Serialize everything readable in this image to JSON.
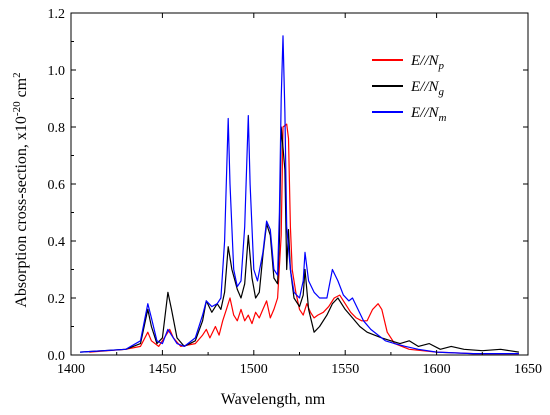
{
  "chart_data": {
    "type": "line",
    "xlabel": "Wavelength, nm",
    "ylabel_prefix": "Absorption cross-section, x10",
    "ylabel_exp": "-20",
    "ylabel_unit": " cm",
    "ylabel_unit_exp": "2",
    "xlim": [
      1400,
      1650
    ],
    "ylim": [
      0.0,
      1.2
    ],
    "xticks": [
      "1400",
      "1450",
      "1500",
      "1550",
      "1600",
      "1650"
    ],
    "yticks": [
      "0.0",
      "0.2",
      "0.4",
      "0.6",
      "0.8",
      "1.0",
      "1.2"
    ],
    "legend_position": "top-right",
    "series": [
      {
        "name_main": "E//N",
        "name_sub": "p",
        "color": "#ff0000",
        "points": [
          [
            1410,
            0.01
          ],
          [
            1430,
            0.02
          ],
          [
            1438,
            0.03
          ],
          [
            1442,
            0.08
          ],
          [
            1444,
            0.05
          ],
          [
            1448,
            0.03
          ],
          [
            1452,
            0.07
          ],
          [
            1454,
            0.09
          ],
          [
            1456,
            0.06
          ],
          [
            1460,
            0.03
          ],
          [
            1468,
            0.04
          ],
          [
            1472,
            0.07
          ],
          [
            1474,
            0.09
          ],
          [
            1476,
            0.06
          ],
          [
            1479,
            0.1
          ],
          [
            1481,
            0.07
          ],
          [
            1483,
            0.12
          ],
          [
            1485,
            0.16
          ],
          [
            1487,
            0.2
          ],
          [
            1489,
            0.14
          ],
          [
            1491,
            0.12
          ],
          [
            1493,
            0.16
          ],
          [
            1495,
            0.12
          ],
          [
            1497,
            0.14
          ],
          [
            1499,
            0.11
          ],
          [
            1501,
            0.15
          ],
          [
            1503,
            0.13
          ],
          [
            1505,
            0.16
          ],
          [
            1507,
            0.19
          ],
          [
            1509,
            0.13
          ],
          [
            1511,
            0.16
          ],
          [
            1513,
            0.2
          ],
          [
            1515,
            0.42
          ],
          [
            1516,
            0.8
          ],
          [
            1518,
            0.81
          ],
          [
            1519,
            0.76
          ],
          [
            1520,
            0.45
          ],
          [
            1521,
            0.3
          ],
          [
            1523,
            0.22
          ],
          [
            1525,
            0.16
          ],
          [
            1527,
            0.14
          ],
          [
            1529,
            0.18
          ],
          [
            1531,
            0.15
          ],
          [
            1533,
            0.13
          ],
          [
            1535,
            0.14
          ],
          [
            1538,
            0.15
          ],
          [
            1541,
            0.17
          ],
          [
            1544,
            0.2
          ],
          [
            1547,
            0.21
          ],
          [
            1550,
            0.18
          ],
          [
            1553,
            0.15
          ],
          [
            1556,
            0.13
          ],
          [
            1559,
            0.12
          ],
          [
            1562,
            0.12
          ],
          [
            1565,
            0.16
          ],
          [
            1568,
            0.18
          ],
          [
            1570,
            0.16
          ],
          [
            1573,
            0.08
          ],
          [
            1577,
            0.04
          ],
          [
            1585,
            0.02
          ],
          [
            1600,
            0.01
          ],
          [
            1620,
            0.005
          ],
          [
            1645,
            0.005
          ]
        ]
      },
      {
        "name_main": "E//N",
        "name_sub": "g",
        "color": "#000000",
        "points": [
          [
            1405,
            0.01
          ],
          [
            1430,
            0.02
          ],
          [
            1438,
            0.04
          ],
          [
            1442,
            0.16
          ],
          [
            1444,
            0.1
          ],
          [
            1447,
            0.04
          ],
          [
            1450,
            0.06
          ],
          [
            1453,
            0.22
          ],
          [
            1455,
            0.16
          ],
          [
            1458,
            0.06
          ],
          [
            1462,
            0.03
          ],
          [
            1468,
            0.05
          ],
          [
            1472,
            0.12
          ],
          [
            1474,
            0.19
          ],
          [
            1477,
            0.15
          ],
          [
            1480,
            0.18
          ],
          [
            1482,
            0.16
          ],
          [
            1484,
            0.22
          ],
          [
            1486,
            0.38
          ],
          [
            1488,
            0.3
          ],
          [
            1491,
            0.23
          ],
          [
            1493,
            0.2
          ],
          [
            1495,
            0.25
          ],
          [
            1497,
            0.42
          ],
          [
            1499,
            0.27
          ],
          [
            1501,
            0.2
          ],
          [
            1503,
            0.22
          ],
          [
            1505,
            0.35
          ],
          [
            1507,
            0.46
          ],
          [
            1509,
            0.42
          ],
          [
            1511,
            0.27
          ],
          [
            1513,
            0.25
          ],
          [
            1514,
            0.4
          ],
          [
            1515,
            0.8
          ],
          [
            1517,
            0.65
          ],
          [
            1518,
            0.3
          ],
          [
            1519,
            0.44
          ],
          [
            1520,
            0.3
          ],
          [
            1522,
            0.2
          ],
          [
            1525,
            0.17
          ],
          [
            1527,
            0.21
          ],
          [
            1528,
            0.3
          ],
          [
            1530,
            0.16
          ],
          [
            1533,
            0.08
          ],
          [
            1536,
            0.1
          ],
          [
            1540,
            0.14
          ],
          [
            1543,
            0.18
          ],
          [
            1546,
            0.2
          ],
          [
            1550,
            0.16
          ],
          [
            1554,
            0.13
          ],
          [
            1558,
            0.1
          ],
          [
            1562,
            0.08
          ],
          [
            1566,
            0.07
          ],
          [
            1570,
            0.06
          ],
          [
            1575,
            0.05
          ],
          [
            1580,
            0.04
          ],
          [
            1585,
            0.05
          ],
          [
            1590,
            0.03
          ],
          [
            1596,
            0.04
          ],
          [
            1602,
            0.02
          ],
          [
            1608,
            0.03
          ],
          [
            1615,
            0.02
          ],
          [
            1625,
            0.015
          ],
          [
            1635,
            0.02
          ],
          [
            1645,
            0.01
          ]
        ]
      },
      {
        "name_main": "E//N",
        "name_sub": "m",
        "color": "#0000ff",
        "points": [
          [
            1405,
            0.01
          ],
          [
            1430,
            0.02
          ],
          [
            1438,
            0.05
          ],
          [
            1442,
            0.18
          ],
          [
            1444,
            0.13
          ],
          [
            1447,
            0.05
          ],
          [
            1450,
            0.04
          ],
          [
            1453,
            0.09
          ],
          [
            1455,
            0.07
          ],
          [
            1458,
            0.04
          ],
          [
            1462,
            0.03
          ],
          [
            1468,
            0.06
          ],
          [
            1472,
            0.14
          ],
          [
            1474,
            0.19
          ],
          [
            1477,
            0.17
          ],
          [
            1480,
            0.18
          ],
          [
            1482,
            0.2
          ],
          [
            1484,
            0.4
          ],
          [
            1486,
            0.83
          ],
          [
            1487,
            0.6
          ],
          [
            1489,
            0.3
          ],
          [
            1491,
            0.24
          ],
          [
            1493,
            0.26
          ],
          [
            1495,
            0.45
          ],
          [
            1497,
            0.84
          ],
          [
            1498,
            0.6
          ],
          [
            1500,
            0.3
          ],
          [
            1502,
            0.26
          ],
          [
            1505,
            0.36
          ],
          [
            1507,
            0.47
          ],
          [
            1509,
            0.44
          ],
          [
            1511,
            0.3
          ],
          [
            1513,
            0.28
          ],
          [
            1514,
            0.5
          ],
          [
            1515,
            0.9
          ],
          [
            1516,
            1.12
          ],
          [
            1517,
            0.85
          ],
          [
            1518,
            0.45
          ],
          [
            1520,
            0.3
          ],
          [
            1522,
            0.22
          ],
          [
            1525,
            0.2
          ],
          [
            1527,
            0.26
          ],
          [
            1528,
            0.36
          ],
          [
            1530,
            0.26
          ],
          [
            1533,
            0.22
          ],
          [
            1536,
            0.2
          ],
          [
            1540,
            0.2
          ],
          [
            1543,
            0.3
          ],
          [
            1546,
            0.26
          ],
          [
            1549,
            0.21
          ],
          [
            1552,
            0.19
          ],
          [
            1554,
            0.2
          ],
          [
            1557,
            0.16
          ],
          [
            1560,
            0.12
          ],
          [
            1564,
            0.09
          ],
          [
            1568,
            0.07
          ],
          [
            1572,
            0.05
          ],
          [
            1577,
            0.04
          ],
          [
            1583,
            0.03
          ],
          [
            1590,
            0.02
          ],
          [
            1600,
            0.01
          ],
          [
            1620,
            0.005
          ],
          [
            1645,
            0.005
          ]
        ]
      }
    ]
  }
}
